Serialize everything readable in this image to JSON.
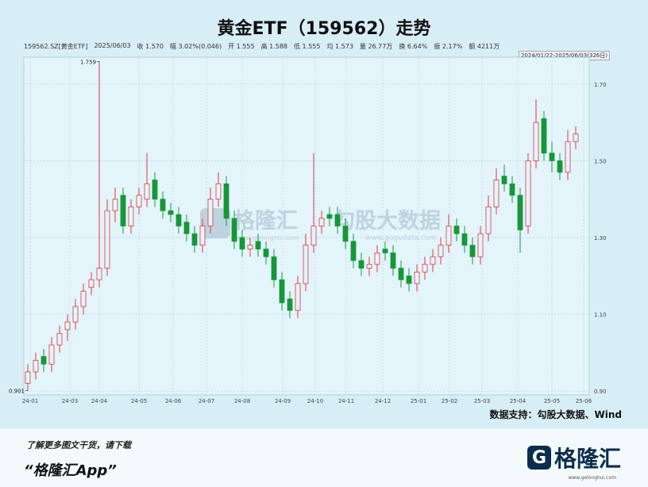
{
  "header": {
    "title": "黄金ETF（159562）走势",
    "info": [
      "159562.SZ[黄金ETF]",
      "2025/06/03",
      "收 1.570",
      "幅 3.02%(0.046)",
      "开 1.555",
      "高 1.588",
      "低 1.555",
      "均 1.573",
      "量 26.77万",
      "换 6.64%",
      "振 2.17%",
      "额 4211万"
    ],
    "range": "2024/01/22-2025/06/03(326日)"
  },
  "chart_data": {
    "type": "candlestick",
    "x": [
      0,
      1,
      2,
      3,
      4,
      5,
      6,
      7,
      8,
      9,
      10,
      11,
      12,
      13,
      14,
      15,
      16,
      17,
      18,
      19,
      20,
      21,
      22,
      23,
      24,
      25,
      26,
      27,
      28,
      29,
      30,
      31,
      32,
      33,
      34,
      35,
      36,
      37,
      38,
      39,
      40,
      41,
      42,
      43,
      44,
      45,
      46,
      47,
      48,
      49,
      50,
      51,
      52,
      53,
      54,
      55,
      56,
      57,
      58,
      59,
      60,
      61,
      62,
      63,
      64,
      65,
      66,
      67,
      68,
      69
    ],
    "open": [
      0.92,
      0.95,
      0.99,
      0.97,
      1.02,
      1.06,
      1.08,
      1.12,
      1.17,
      1.19,
      1.22,
      1.37,
      1.41,
      1.33,
      1.38,
      1.4,
      1.45,
      1.4,
      1.37,
      1.36,
      1.34,
      1.31,
      1.28,
      1.33,
      1.4,
      1.44,
      1.35,
      1.3,
      1.27,
      1.29,
      1.27,
      1.25,
      1.19,
      1.14,
      1.11,
      1.18,
      1.28,
      1.33,
      1.36,
      1.36,
      1.33,
      1.29,
      1.24,
      1.22,
      1.23,
      1.27,
      1.26,
      1.22,
      1.2,
      1.18,
      1.21,
      1.23,
      1.25,
      1.28,
      1.33,
      1.31,
      1.28,
      1.25,
      1.31,
      1.38,
      1.46,
      1.44,
      1.41,
      1.33,
      1.5,
      1.61,
      1.52,
      1.5,
      1.47,
      1.55
    ],
    "high": [
      0.97,
      1.0,
      1.01,
      1.04,
      1.07,
      1.1,
      1.14,
      1.18,
      1.21,
      1.759,
      1.4,
      1.43,
      1.43,
      1.4,
      1.43,
      1.52,
      1.47,
      1.42,
      1.39,
      1.38,
      1.36,
      1.33,
      1.35,
      1.43,
      1.47,
      1.46,
      1.37,
      1.32,
      1.3,
      1.31,
      1.29,
      1.27,
      1.21,
      1.16,
      1.2,
      1.31,
      1.52,
      1.37,
      1.38,
      1.38,
      1.35,
      1.31,
      1.26,
      1.25,
      1.28,
      1.29,
      1.28,
      1.24,
      1.22,
      1.23,
      1.25,
      1.27,
      1.3,
      1.36,
      1.35,
      1.33,
      1.3,
      1.33,
      1.41,
      1.48,
      1.49,
      1.46,
      1.43,
      1.52,
      1.66,
      1.63,
      1.55,
      1.52,
      1.58,
      1.59
    ],
    "low": [
      0.901,
      0.93,
      0.95,
      0.95,
      1.0,
      1.03,
      1.06,
      1.1,
      1.15,
      1.17,
      1.2,
      1.34,
      1.31,
      1.31,
      1.36,
      1.38,
      1.38,
      1.35,
      1.34,
      1.31,
      1.29,
      1.26,
      1.26,
      1.31,
      1.38,
      1.33,
      1.27,
      1.25,
      1.25,
      1.25,
      1.23,
      1.17,
      1.11,
      1.09,
      1.09,
      1.16,
      1.26,
      1.31,
      1.33,
      1.31,
      1.27,
      1.22,
      1.2,
      1.2,
      1.21,
      1.24,
      1.2,
      1.17,
      1.16,
      1.16,
      1.19,
      1.21,
      1.23,
      1.26,
      1.29,
      1.26,
      1.23,
      1.23,
      1.29,
      1.36,
      1.42,
      1.39,
      1.26,
      1.31,
      1.48,
      1.5,
      1.47,
      1.45,
      1.45,
      1.53
    ],
    "close": [
      0.95,
      0.98,
      0.97,
      1.02,
      1.05,
      1.08,
      1.12,
      1.16,
      1.19,
      1.22,
      1.37,
      1.4,
      1.33,
      1.38,
      1.41,
      1.44,
      1.4,
      1.37,
      1.36,
      1.33,
      1.31,
      1.28,
      1.33,
      1.4,
      1.44,
      1.35,
      1.29,
      1.27,
      1.28,
      1.27,
      1.25,
      1.19,
      1.13,
      1.11,
      1.18,
      1.28,
      1.33,
      1.35,
      1.35,
      1.33,
      1.29,
      1.24,
      1.22,
      1.23,
      1.26,
      1.26,
      1.22,
      1.19,
      1.18,
      1.21,
      1.23,
      1.25,
      1.28,
      1.33,
      1.31,
      1.28,
      1.25,
      1.31,
      1.38,
      1.45,
      1.44,
      1.41,
      1.32,
      1.5,
      1.6,
      1.52,
      1.5,
      1.47,
      1.55,
      1.57
    ],
    "up_color": "#e0393e",
    "down_color": "#17973a",
    "xlim": [
      -0.5,
      70.7
    ],
    "xticks": [
      {
        "value": 0.3,
        "label": "24-01"
      },
      {
        "value": 5.3,
        "label": "24-03"
      },
      {
        "value": 9.0,
        "label": "24-04"
      },
      {
        "value": 14.0,
        "label": "24-05"
      },
      {
        "value": 18.3,
        "label": "24-06"
      },
      {
        "value": 22.5,
        "label": "24-07"
      },
      {
        "value": 27.0,
        "label": "24-08"
      },
      {
        "value": 32.1,
        "label": "24-09"
      },
      {
        "value": 36.2,
        "label": "24-10"
      },
      {
        "value": 40.1,
        "label": "24-11"
      },
      {
        "value": 44.7,
        "label": "24-12"
      },
      {
        "value": 49.2,
        "label": "25-01"
      },
      {
        "value": 53.1,
        "label": "25-02"
      },
      {
        "value": 57.2,
        "label": "25-03"
      },
      {
        "value": 61.7,
        "label": "25-04"
      },
      {
        "value": 66.0,
        "label": "25-05"
      },
      {
        "value": 70.0,
        "label": "25-06"
      }
    ],
    "ylim": [
      0.89,
      1.77
    ],
    "yticks": [
      {
        "value": 0.9,
        "label": "0.90"
      },
      {
        "value": 1.1,
        "label": "1.10"
      },
      {
        "value": 1.3,
        "label": "1.30"
      },
      {
        "value": 1.5,
        "label": "1.50"
      },
      {
        "value": 1.7,
        "label": "1.70"
      }
    ],
    "grid": true,
    "annotations": [
      {
        "text": "1.759",
        "x": 9,
        "y": 1.759
      },
      {
        "text": "0.901",
        "x": 0,
        "y": 0.901
      }
    ]
  },
  "watermark": {
    "brand": "格隆汇",
    "site": "www.gelonghui.com",
    "brand2": "勾股大数据",
    "site2": "www.gogudata.com"
  },
  "source": "数据支持：勾股大数据、Wind",
  "footer": {
    "promo": "了解更多图文干货，请下载",
    "app": "“格隆汇App”",
    "logo": "格隆汇",
    "logo_site": "www.gelonghui.com"
  }
}
